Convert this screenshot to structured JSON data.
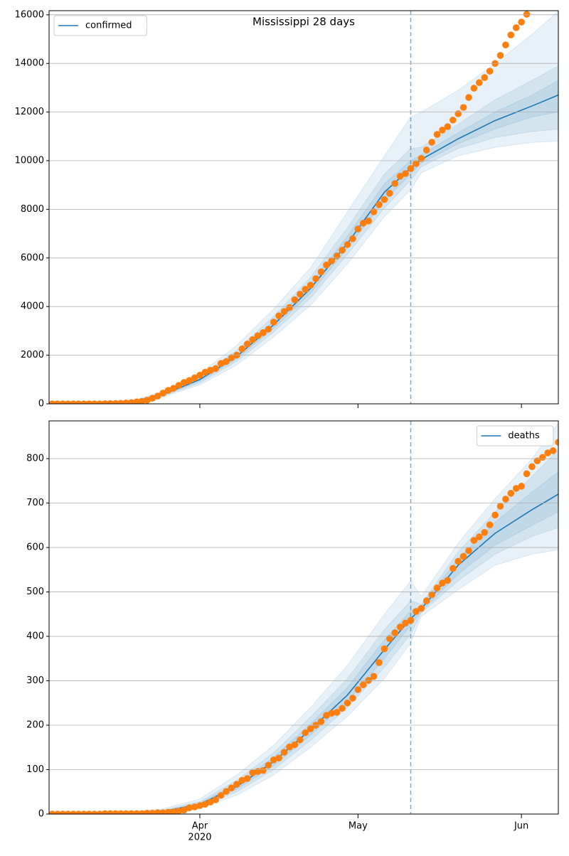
{
  "chart_data": [
    {
      "type": "line",
      "title": "Mississippi 28 days",
      "legend": "upper left",
      "grid": true,
      "xlim": [
        63.4,
        160
      ],
      "ylim": [
        0,
        16170
      ],
      "yticks": [
        0,
        2000,
        4000,
        6000,
        8000,
        10000,
        12000,
        14000,
        16000
      ],
      "xticks": [
        92,
        122,
        153
      ],
      "vline": 132,
      "vline_color": "#1f77b4",
      "observed": {
        "color": "#ff7f0e",
        "x": [
          64,
          65,
          66,
          67,
          68,
          69,
          70,
          71,
          72,
          73,
          74,
          75,
          76,
          77,
          78,
          79,
          80,
          81,
          82,
          83,
          84,
          85,
          86,
          87,
          88,
          89,
          90,
          91,
          92,
          93,
          94,
          95,
          96,
          97,
          98,
          99,
          100,
          101,
          102,
          103,
          104,
          105,
          106,
          107,
          108,
          109,
          110,
          111,
          112,
          113,
          114,
          115,
          116,
          117,
          118,
          119,
          120,
          121,
          122,
          123,
          124,
          125,
          126,
          127,
          128,
          129,
          130,
          131,
          132,
          133,
          134,
          135,
          136,
          137,
          138,
          139,
          140,
          141,
          142,
          143,
          144,
          145,
          146,
          147,
          148,
          149,
          150,
          151,
          152,
          153,
          154
        ],
        "values": [
          0,
          0,
          0,
          0,
          0,
          0,
          0,
          0,
          0,
          0,
          6,
          10,
          12,
          21,
          34,
          50,
          80,
          100,
          150,
          230,
          320,
          440,
          555,
          640,
          760,
          880,
          960,
          1070,
          1180,
          1300,
          1380,
          1450,
          1660,
          1740,
          1900,
          2000,
          2260,
          2460,
          2640,
          2800,
          2930,
          3070,
          3360,
          3620,
          3800,
          3960,
          4280,
          4510,
          4710,
          4880,
          5150,
          5430,
          5710,
          5880,
          6080,
          6320,
          6550,
          6790,
          7190,
          7430,
          7520,
          7900,
          8190,
          8400,
          8660,
          9060,
          9360,
          9470,
          9680,
          9880,
          10090,
          10440,
          10760,
          11080,
          11260,
          11400,
          11670,
          11930,
          12190,
          12600,
          12980,
          13210,
          13420,
          13680,
          14000,
          14330,
          14760,
          15170,
          15470,
          15700,
          16020
        ]
      },
      "series": [
        {
          "name": "confirmed",
          "color": "#1f77b4",
          "x": [
            64,
            71,
            78,
            85,
            92,
            99,
            106,
            113,
            120,
            127,
            132,
            134,
            141,
            148,
            155,
            160
          ],
          "values": [
            0,
            0,
            30,
            380,
            1000,
            1950,
            3250,
            4750,
            6600,
            8700,
            9700,
            10050,
            10900,
            11650,
            12250,
            12700
          ],
          "bands": [
            {
              "lower": [
                0,
                0,
                10,
                280,
                780,
                1600,
                2750,
                4050,
                5750,
                7700,
                8800,
                9500,
                10200,
                10550,
                10750,
                10800
              ],
              "upper": [
                0,
                0,
                60,
                500,
                1250,
                2400,
                3900,
                5600,
                7900,
                10200,
                11800,
                12000,
                12900,
                14000,
                15200,
                16150
              ]
            },
            {
              "lower": [
                0,
                0,
                15,
                320,
                860,
                1750,
                2950,
                4350,
                6150,
                8050,
                9200,
                9750,
                10500,
                10950,
                11200,
                11300
              ],
              "upper": [
                0,
                0,
                45,
                450,
                1150,
                2200,
                3600,
                5200,
                7250,
                9450,
                10500,
                10550,
                11500,
                12500,
                13300,
                13900
              ]
            },
            {
              "lower": [
                0,
                0,
                22,
                350,
                930,
                1850,
                3100,
                4550,
                6400,
                8350,
                9450,
                9900,
                10700,
                11300,
                11800,
                12000
              ],
              "upper": [
                0,
                0,
                38,
                410,
                1070,
                2050,
                3400,
                4950,
                6900,
                9050,
                10000,
                10250,
                11150,
                12000,
                12700,
                13300
              ]
            }
          ]
        }
      ]
    },
    {
      "type": "line",
      "legend": "upper right",
      "grid": true,
      "xlim": [
        63.4,
        160
      ],
      "ylim": [
        0,
        885
      ],
      "yticks": [
        0,
        100,
        200,
        300,
        400,
        500,
        600,
        700,
        800
      ],
      "xticks": [
        {
          "value": 92,
          "label": "Apr"
        },
        {
          "value": 122,
          "label": "May"
        },
        {
          "value": 153,
          "label": "Jun"
        }
      ],
      "xtick_year": "2020",
      "vline": 132,
      "vline_color": "#1f77b4",
      "observed": {
        "color": "#ff7f0e",
        "x": [
          64,
          65,
          66,
          67,
          68,
          69,
          70,
          71,
          72,
          73,
          74,
          75,
          76,
          77,
          78,
          79,
          80,
          81,
          82,
          83,
          84,
          85,
          86,
          87,
          88,
          89,
          90,
          91,
          92,
          93,
          94,
          95,
          96,
          97,
          98,
          99,
          100,
          101,
          102,
          103,
          104,
          105,
          106,
          107,
          108,
          109,
          110,
          111,
          112,
          113,
          114,
          115,
          116,
          117,
          118,
          119,
          120,
          121,
          122,
          123,
          124,
          125,
          126,
          127,
          128,
          129,
          130,
          131,
          132,
          133,
          134,
          135,
          136,
          137,
          138,
          139,
          140,
          141,
          142,
          143,
          144,
          145,
          146,
          147,
          148,
          149,
          150,
          151,
          152,
          153,
          154,
          155,
          156,
          157,
          158,
          159,
          160
        ],
        "values": [
          0,
          0,
          0,
          0,
          0,
          0,
          0,
          0,
          0,
          0,
          1,
          1,
          1,
          1,
          1,
          1,
          1,
          1,
          2,
          2,
          3,
          3,
          4,
          5,
          7,
          9,
          14,
          16,
          19,
          22,
          27,
          32,
          42,
          51,
          59,
          67,
          76,
          80,
          93,
          96,
          98,
          110,
          122,
          126,
          139,
          151,
          156,
          167,
          183,
          192,
          200,
          208,
          222,
          227,
          229,
          238,
          250,
          261,
          280,
          291,
          301,
          310,
          341,
          372,
          395,
          408,
          421,
          430,
          436,
          456,
          463,
          480,
          494,
          509,
          520,
          526,
          553,
          569,
          580,
          593,
          616,
          624,
          634,
          651,
          673,
          693,
          709,
          722,
          733,
          738,
          766,
          782,
          795,
          803,
          813,
          818,
          837
        ]
      },
      "series": [
        {
          "name": "deaths",
          "color": "#1f77b4",
          "x": [
            64,
            71,
            78,
            85,
            92,
            99,
            106,
            113,
            120,
            127,
            132,
            134,
            141,
            148,
            155,
            160
          ],
          "values": [
            0,
            0,
            2,
            6,
            22,
            62,
            118,
            190,
            268,
            370,
            440,
            462,
            560,
            632,
            685,
            720
          ],
          "bands": [
            {
              "lower": [
                0,
                0,
                1,
                3,
                14,
                42,
                88,
                150,
                220,
                305,
                385,
                445,
                505,
                560,
                585,
                595
              ],
              "upper": [
                0,
                0,
                4,
                12,
                34,
                88,
                155,
                240,
                335,
                450,
                525,
                490,
                610,
                710,
                800,
                880
              ]
            },
            {
              "lower": [
                0,
                0,
                1,
                4,
                17,
                50,
                100,
                166,
                240,
                330,
                405,
                453,
                525,
                585,
                625,
                645
              ],
              "upper": [
                0,
                0,
                3,
                9,
                28,
                76,
                138,
                218,
                305,
                415,
                480,
                472,
                590,
                680,
                760,
                820
              ]
            },
            {
              "lower": [
                0,
                0,
                2,
                5,
                19,
                56,
                109,
                178,
                254,
                350,
                425,
                456,
                540,
                605,
                650,
                680
              ],
              "upper": [
                0,
                0,
                3,
                7,
                25,
                68,
                128,
                203,
                285,
                392,
                458,
                468,
                575,
                657,
                725,
                770
              ]
            }
          ]
        }
      ]
    }
  ]
}
